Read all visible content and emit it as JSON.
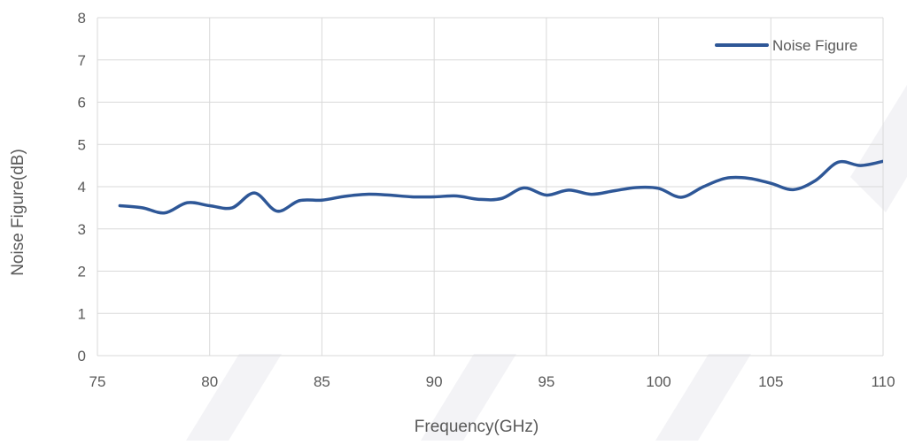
{
  "chart_data": {
    "type": "line",
    "title": "",
    "xlabel": "Frequency(GHz)",
    "ylabel": "Noise Figure(dB)",
    "xlim": [
      75,
      110
    ],
    "ylim": [
      0,
      8
    ],
    "x_ticks": [
      75,
      80,
      85,
      90,
      95,
      100,
      105,
      110
    ],
    "y_ticks": [
      0,
      1,
      2,
      3,
      4,
      5,
      6,
      7,
      8
    ],
    "grid": true,
    "legend_position": "top-right",
    "series": [
      {
        "name": "Noise Figure",
        "color": "#2e5797",
        "x": [
          76,
          77,
          78,
          79,
          80,
          81,
          82,
          83,
          84,
          85,
          86,
          87,
          88,
          89,
          90,
          91,
          92,
          93,
          94,
          95,
          96,
          97,
          98,
          99,
          100,
          101,
          102,
          103,
          104,
          105,
          106,
          107,
          108,
          109,
          110
        ],
        "y": [
          3.55,
          3.5,
          3.38,
          3.62,
          3.55,
          3.5,
          3.85,
          3.42,
          3.67,
          3.68,
          3.77,
          3.82,
          3.8,
          3.76,
          3.76,
          3.78,
          3.7,
          3.72,
          3.97,
          3.8,
          3.92,
          3.82,
          3.9,
          3.98,
          3.96,
          3.75,
          4.0,
          4.2,
          4.2,
          4.08,
          3.93,
          4.15,
          4.58,
          4.5,
          4.6
        ]
      }
    ]
  }
}
